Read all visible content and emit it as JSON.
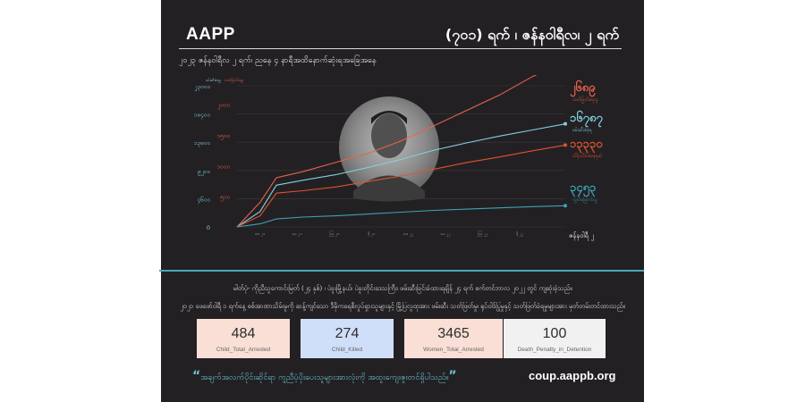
{
  "header": {
    "brand": "AAPP",
    "headline": "(၇၀၁) ရက် ၊ ဇန်နဝါရီလ၊ ၂ ရက်",
    "subtitle": "၂၀၂၃ ဇန်နဝါရီလ ၂ ရက်၊ ညနေ ၄ နာရီအထိနောက်ဆုံးရအခြေအနေ"
  },
  "body_text": {
    "line1": "မါတ်ပုံ- ကိုညီသူကောင်းမြတ် (၂၄ နှစ်) ၊ ပဲခူးမြို့နယ်၊ ပဲခူးတိုင်းဒေသကြီး၊ ဖမ်းဆီးခြင်းခံထားရချိန် ၂၄ ရက် စက်တင်ဘာလ ၂၀၂၂ တွင် ကျဆုံးခဲ့သည်။",
    "line2": "၂၀၂၁ ဖေဖော်ဝါရီ ၁ ရက်နေ့ စစ်အာဏာသိမ်းမှုကို ဆန့်ကျင်သော ဒီမိုကရေစီလှုပ်ရှားသူများနှင့် မြို့ပြလူထုအား ဖမ်းဆီး သတ်ဖြတ်မှု၊ ရုပ်ဝါဒ်ပြုမှုနှင့် သတ်ဖြတ်ခံရမှုများအား မှတ်တမ်းတင်ထားသည်။"
  },
  "stats": [
    {
      "value": "484",
      "label": "Child_Total_Arrested"
    },
    {
      "value": "274",
      "label": "Child_Killed"
    },
    {
      "value": "3465",
      "label": "Women_Total_Arrested"
    },
    {
      "value": "100",
      "label": "Death_Penalty_in_Detention"
    }
  ],
  "footer": {
    "quote": "အချက်အလက်ပိုင်းဆိုင်ရာ ကူညီပံ့ပိုးပေးသူများအားလုံးကို အထူးကျေးဇူးတင်ရှိပါသည်။",
    "url": "coup.aappb.org"
  },
  "colors": {
    "background": "#232023",
    "red": "#e8624d",
    "teal": "#7fd2dc",
    "orange": "#df5330",
    "darkteal": "#3da3b5",
    "grid": "#3a3a3d"
  },
  "chart_data": {
    "type": "line",
    "left_axis_title": "ဖမ်းဆီးခံရမှု",
    "right_axis_title": "သတ်ဖြတ်ခံရမှု",
    "left_ticks": [
      "0",
      "၄၆၀၀",
      "၉၂၀၀",
      "၁၃၈၀၀",
      "၁၈၄၀၀",
      "၂၃၀၀၀"
    ],
    "left_tick_values": [
      0,
      4600,
      9200,
      13800,
      18400,
      23000
    ],
    "right_ticks": [
      "၅၀၀",
      "၁၀၀၀",
      "၁၅၀၀",
      "၂၀၀၀"
    ],
    "right_tick_values": [
      500,
      1000,
      1500,
      2000
    ],
    "x_tick_labels": [
      "ဖေ ၂၁",
      "မေ ၂၁",
      "ဩ ၂၁",
      "နို ၂၁",
      "ဖေ ၂၂",
      "မေ ၂၂",
      "ဩ ၂၂",
      "နို ၂၂"
    ],
    "x_end_label": "ဇန်နဝါရီ ၂",
    "ylim_left": [
      0,
      23000
    ],
    "ylim_right": [
      0,
      2300
    ],
    "series": [
      {
        "name": "သတ်ဖြတ်ခံရသူ",
        "total": "၂၆၈၉",
        "color": "#e8624d",
        "axis": "right",
        "points": [
          [
            0,
            0
          ],
          [
            0.07,
            400
          ],
          [
            0.12,
            800
          ],
          [
            0.2,
            900
          ],
          [
            0.3,
            1050
          ],
          [
            0.4,
            1200
          ],
          [
            0.5,
            1400
          ],
          [
            0.6,
            1650
          ],
          [
            0.7,
            1900
          ],
          [
            0.8,
            2150
          ],
          [
            0.9,
            2450
          ],
          [
            1,
            2689
          ]
        ]
      },
      {
        "name": "ဖမ်းဆီးခံခဲ့ရ",
        "total": "၁၆၇၈၇",
        "color": "#7fd2dc",
        "axis": "left",
        "points": [
          [
            0,
            0
          ],
          [
            0.07,
            2500
          ],
          [
            0.12,
            6800
          ],
          [
            0.2,
            7600
          ],
          [
            0.3,
            8500
          ],
          [
            0.4,
            9700
          ],
          [
            0.5,
            11000
          ],
          [
            0.6,
            12500
          ],
          [
            0.7,
            13700
          ],
          [
            0.8,
            14800
          ],
          [
            0.9,
            15800
          ],
          [
            1,
            16787
          ]
        ]
      },
      {
        "name": "ထိန်းသိမ်းခံနေရဆဲ",
        "total": "၁၃၃၃၀",
        "color": "#df5330",
        "axis": "left",
        "points": [
          [
            0,
            0
          ],
          [
            0.07,
            1800
          ],
          [
            0.12,
            5500
          ],
          [
            0.2,
            5900
          ],
          [
            0.3,
            6500
          ],
          [
            0.4,
            7400
          ],
          [
            0.5,
            8300
          ],
          [
            0.6,
            9400
          ],
          [
            0.7,
            10500
          ],
          [
            0.8,
            11400
          ],
          [
            0.9,
            12400
          ],
          [
            1,
            13330
          ]
        ]
      },
      {
        "name": "လွတ်မြောက်သူ",
        "total": "၃၄၅၃",
        "color": "#3da3b5",
        "axis": "left",
        "points": [
          [
            0,
            0
          ],
          [
            0.07,
            500
          ],
          [
            0.12,
            1300
          ],
          [
            0.2,
            1600
          ],
          [
            0.3,
            1800
          ],
          [
            0.4,
            2100
          ],
          [
            0.5,
            2400
          ],
          [
            0.6,
            2700
          ],
          [
            0.7,
            2900
          ],
          [
            0.8,
            3100
          ],
          [
            0.9,
            3300
          ],
          [
            1,
            3453
          ]
        ]
      }
    ]
  }
}
